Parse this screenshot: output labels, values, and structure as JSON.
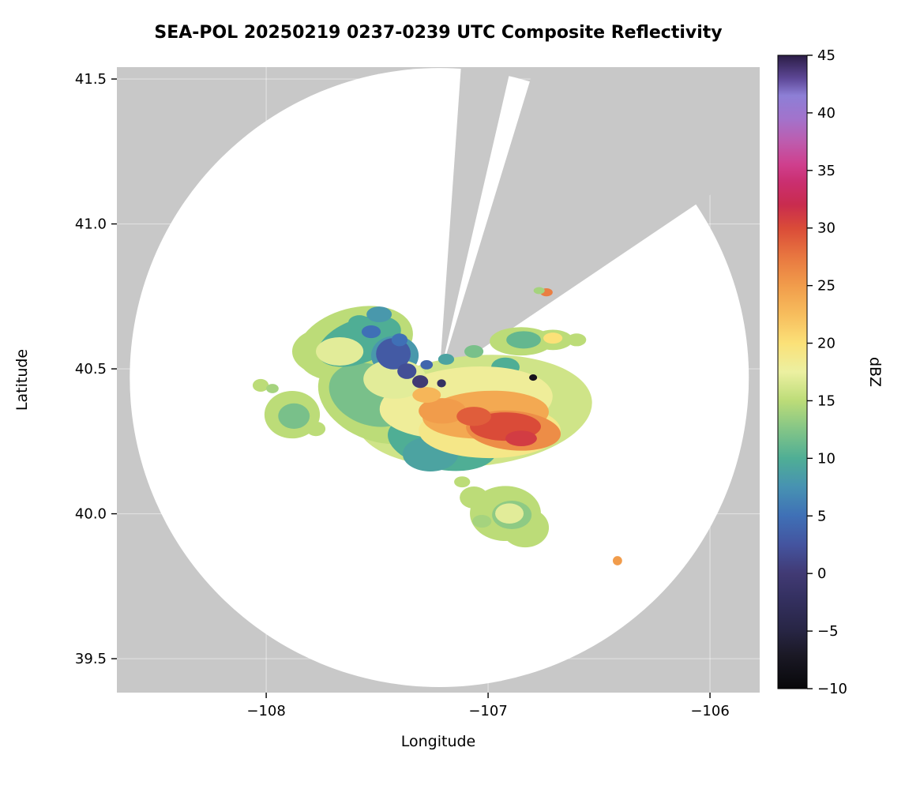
{
  "figure": {
    "background": "#ffffff",
    "text_color": "#000000"
  },
  "chart_data": {
    "type": "heatmap",
    "title": "SEA-POL 20250219 0237-0239 UTC Composite Reflectivity",
    "xlabel": "Longitude",
    "ylabel": "Latitude",
    "xlim": [
      -108.673,
      -105.776
    ],
    "ylim": [
      39.383,
      41.541
    ],
    "xticks": [
      -108,
      -107,
      -106
    ],
    "xtick_labels": [
      "−108",
      "−107",
      "−106"
    ],
    "yticks": [
      39.5,
      40.0,
      40.5,
      41.0,
      41.5
    ],
    "ytick_labels": [
      "39.5",
      "40.0",
      "40.5",
      "41.0",
      "41.5"
    ],
    "grid": true,
    "gridline_color": "#ffffff",
    "background_color": "#c8c8c8",
    "coverage_color": "#ffffff",
    "colorbar": {
      "label": "dBZ",
      "min": -10,
      "max": 45,
      "ticks": [
        -10,
        -5,
        0,
        5,
        10,
        15,
        20,
        25,
        30,
        35,
        40,
        45
      ],
      "tick_labels": [
        "−10",
        "−5",
        "0",
        "5",
        "10",
        "15",
        "20",
        "25",
        "30",
        "35",
        "40",
        "45"
      ],
      "stops": [
        [
          -10,
          "#08080a"
        ],
        [
          -7,
          "#1b1926"
        ],
        [
          -5,
          "#272544"
        ],
        [
          -2,
          "#353162"
        ],
        [
          0,
          "#413a74"
        ],
        [
          2.5,
          "#44549f"
        ],
        [
          5,
          "#3f70b6"
        ],
        [
          7.5,
          "#4792b2"
        ],
        [
          10,
          "#4fae95"
        ],
        [
          12.5,
          "#83c587"
        ],
        [
          15,
          "#bcdc78"
        ],
        [
          17.5,
          "#ecf0a1"
        ],
        [
          20,
          "#fbe178"
        ],
        [
          22.5,
          "#f7bd5d"
        ],
        [
          25,
          "#f19c4b"
        ],
        [
          27.5,
          "#e87740"
        ],
        [
          30,
          "#da4b38"
        ],
        [
          32,
          "#c92c4e"
        ],
        [
          34,
          "#ca2f70"
        ],
        [
          35.5,
          "#cf3f8d"
        ],
        [
          37.5,
          "#bd5cae"
        ],
        [
          39.5,
          "#a273cc"
        ],
        [
          41.5,
          "#8d7fd6"
        ],
        [
          43,
          "#5d4796"
        ],
        [
          45,
          "#2b1d46"
        ]
      ]
    },
    "radar": {
      "center_lon": -107.22,
      "center_lat": 40.47,
      "coverage_radius_lat_deg": 1.068,
      "blocked_sectors_az_deg": [
        [
          4,
          13
        ],
        [
          17,
          56
        ]
      ]
    },
    "echo_format": [
      "lon",
      "lat",
      "rx_deg",
      "ry_deg",
      "rotation_deg",
      "dbz"
    ],
    "echoes": [
      [
        -107.064,
        40.355,
        0.534,
        0.191,
        -5,
        16
      ],
      [
        -107.49,
        40.4,
        0.285,
        0.15,
        20,
        15
      ],
      [
        -107.6,
        40.587,
        0.267,
        0.123,
        -15,
        15
      ],
      [
        -107.723,
        40.56,
        0.16,
        0.082,
        0,
        15
      ],
      [
        -107.883,
        40.342,
        0.125,
        0.082,
        0,
        15
      ],
      [
        -106.922,
        40.001,
        0.16,
        0.095,
        0,
        15
      ],
      [
        -106.833,
        39.952,
        0.107,
        0.068,
        0,
        15
      ],
      [
        -107.064,
        40.056,
        0.064,
        0.038,
        0,
        15
      ],
      [
        -106.851,
        40.595,
        0.142,
        0.049,
        0,
        15
      ],
      [
        -106.708,
        40.6,
        0.089,
        0.035,
        0,
        15
      ],
      [
        -108.025,
        40.443,
        0.036,
        0.022,
        0,
        15
      ],
      [
        -107.972,
        40.432,
        0.028,
        0.016,
        0,
        14
      ],
      [
        -107.776,
        40.293,
        0.043,
        0.025,
        0,
        15
      ],
      [
        -107.705,
        40.492,
        0.05,
        0.025,
        0,
        15
      ],
      [
        -107.117,
        40.11,
        0.036,
        0.019,
        0,
        15
      ],
      [
        -107.028,
        39.974,
        0.043,
        0.022,
        0,
        14
      ],
      [
        -106.601,
        40.6,
        0.043,
        0.022,
        0,
        15
      ],
      [
        -107.206,
        40.247,
        0.249,
        0.095,
        10,
        10
      ],
      [
        -107.527,
        40.41,
        0.196,
        0.104,
        20,
        12
      ],
      [
        -107.58,
        40.595,
        0.196,
        0.076,
        -20,
        10
      ],
      [
        -107.42,
        40.546,
        0.107,
        0.068,
        0,
        8
      ],
      [
        -107.26,
        40.206,
        0.125,
        0.06,
        0,
        9
      ],
      [
        -106.922,
        40.506,
        0.064,
        0.033,
        0,
        10
      ],
      [
        -107.875,
        40.337,
        0.071,
        0.044,
        0,
        12
      ],
      [
        -106.893,
        39.996,
        0.089,
        0.049,
        0,
        13
      ],
      [
        -106.84,
        40.6,
        0.078,
        0.03,
        0,
        11
      ],
      [
        -107.491,
        40.688,
        0.057,
        0.027,
        0,
        8
      ],
      [
        -107.58,
        40.66,
        0.05,
        0.025,
        0,
        10
      ],
      [
        -107.189,
        40.533,
        0.036,
        0.019,
        0,
        9
      ],
      [
        -107.064,
        40.56,
        0.043,
        0.022,
        0,
        12
      ],
      [
        -107.099,
        40.383,
        0.391,
        0.123,
        -5,
        18
      ],
      [
        -106.993,
        40.287,
        0.32,
        0.095,
        0,
        19
      ],
      [
        -107.42,
        40.465,
        0.142,
        0.068,
        0,
        17
      ],
      [
        -107.669,
        40.56,
        0.107,
        0.049,
        0,
        17
      ],
      [
        -106.904,
        40.001,
        0.064,
        0.035,
        0,
        17
      ],
      [
        -107.011,
        40.342,
        0.285,
        0.082,
        -3,
        24
      ],
      [
        -106.886,
        40.287,
        0.214,
        0.068,
        5,
        26
      ],
      [
        -107.206,
        40.355,
        0.107,
        0.044,
        0,
        25
      ],
      [
        -107.277,
        40.41,
        0.064,
        0.027,
        0,
        23
      ],
      [
        -106.708,
        40.606,
        0.043,
        0.019,
        0,
        20
      ],
      [
        -106.417,
        39.838,
        0.021,
        0.016,
        0,
        25
      ],
      [
        -106.737,
        40.764,
        0.028,
        0.014,
        0,
        27
      ],
      [
        -106.77,
        40.77,
        0.025,
        0.012,
        0,
        14
      ],
      [
        -106.922,
        40.301,
        0.16,
        0.049,
        0,
        30
      ],
      [
        -107.064,
        40.336,
        0.078,
        0.033,
        0,
        29
      ],
      [
        -106.851,
        40.26,
        0.071,
        0.027,
        0,
        31
      ],
      [
        -107.427,
        40.552,
        0.078,
        0.054,
        0,
        3
      ],
      [
        -107.366,
        40.492,
        0.043,
        0.027,
        0,
        2
      ],
      [
        -107.306,
        40.456,
        0.036,
        0.022,
        0,
        0
      ],
      [
        -107.277,
        40.514,
        0.028,
        0.016,
        0,
        4
      ],
      [
        -107.527,
        40.628,
        0.043,
        0.022,
        0,
        5
      ],
      [
        -106.797,
        40.47,
        0.018,
        0.011,
        0,
        -8
      ],
      [
        -107.399,
        40.6,
        0.036,
        0.022,
        0,
        5
      ],
      [
        -107.21,
        40.45,
        0.02,
        0.014,
        0,
        -2
      ]
    ]
  }
}
